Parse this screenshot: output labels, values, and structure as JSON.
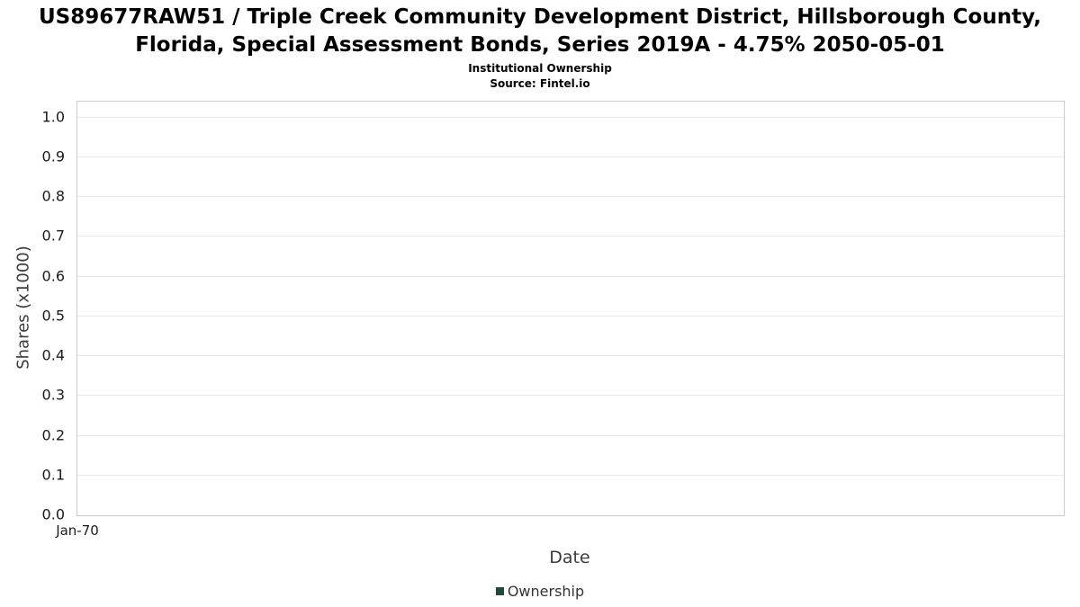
{
  "chart_data": {
    "type": "line",
    "title": "US89677RAW51 / Triple Creek Community Development District, Hillsborough County, Florida, Special Assessment Bonds, Series 2019A - 4.75% 2050-05-01",
    "subtitle": "Institutional Ownership",
    "source": "Source: Fintel.io",
    "xlabel": "Date",
    "ylabel": "Shares (x1000)",
    "x_ticks": [
      "Jan-70"
    ],
    "y_ticks": [
      "0.0",
      "0.1",
      "0.2",
      "0.3",
      "0.4",
      "0.5",
      "0.6",
      "0.7",
      "0.8",
      "0.9",
      "1.0"
    ],
    "ylim": [
      0,
      1.04
    ],
    "grid": true,
    "legend_position": "bottom",
    "series": [
      {
        "name": "Ownership",
        "color": "#1d4d36",
        "x": [],
        "values": []
      }
    ]
  }
}
